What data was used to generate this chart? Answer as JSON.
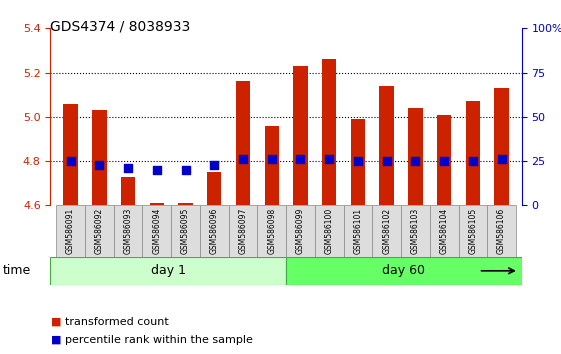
{
  "title": "GDS4374 / 8038933",
  "samples": [
    "GSM586091",
    "GSM586092",
    "GSM586093",
    "GSM586094",
    "GSM586095",
    "GSM586096",
    "GSM586097",
    "GSM586098",
    "GSM586099",
    "GSM586100",
    "GSM586101",
    "GSM586102",
    "GSM586103",
    "GSM586104",
    "GSM586105",
    "GSM586106"
  ],
  "transformed_count": [
    5.06,
    5.03,
    4.73,
    4.61,
    4.61,
    4.75,
    5.16,
    4.96,
    5.23,
    5.26,
    4.99,
    5.14,
    5.04,
    5.01,
    5.07,
    5.13
  ],
  "percentile_rank": [
    4.8,
    4.78,
    4.77,
    4.76,
    4.76,
    4.78,
    4.81,
    4.81,
    4.81,
    4.81,
    4.8,
    4.8,
    4.8,
    4.8,
    4.8,
    4.81
  ],
  "bar_bottom": 4.6,
  "ylim": [
    4.6,
    5.4
  ],
  "y2lim": [
    0,
    100
  ],
  "yticks": [
    4.6,
    4.8,
    5.0,
    5.2,
    5.4
  ],
  "y2ticks": [
    0,
    25,
    50,
    75,
    100
  ],
  "bar_color": "#cc2200",
  "dot_color": "#0000cc",
  "day1_label": "day 1",
  "day60_label": "day 60",
  "day1_color": "#ccffcc",
  "day60_color": "#66ff66",
  "day_border_color": "#44aa44",
  "time_label": "time",
  "legend_red": "transformed count",
  "legend_blue": "percentile rank within the sample",
  "bar_width": 0.5,
  "grid_color": "black",
  "bg_color": "#ffffff",
  "axis_color_left": "#cc2200",
  "axis_color_right": "#0000cc",
  "tick_label_area_color": "#dddddd",
  "tick_label_area_border": "#888888"
}
